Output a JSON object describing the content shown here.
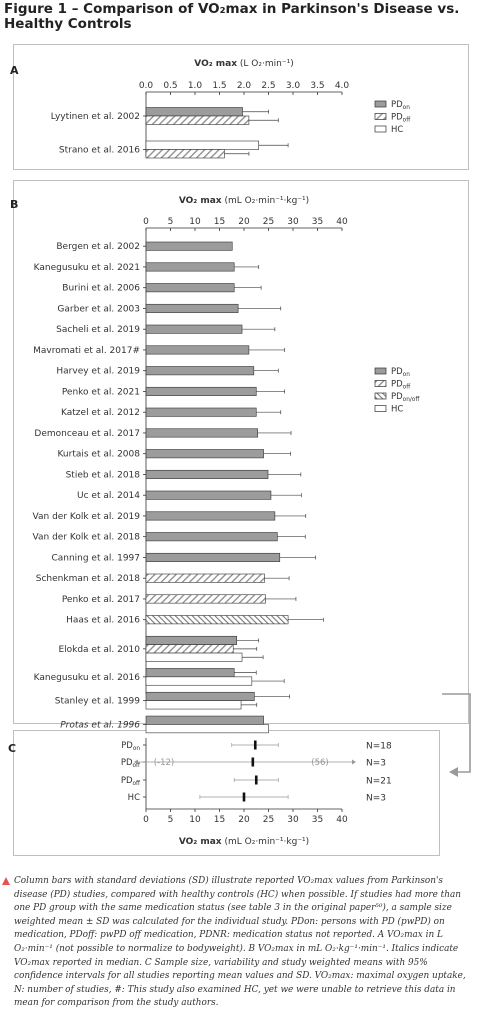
{
  "figure_title": "Figure 1 – Comparison of VO₂max in Parkinson's Disease vs. Healthy Controls",
  "colors": {
    "pd_on": "#9c9c9c",
    "hc": "#ffffff",
    "border": "#bfbfbf",
    "accent": "#e55353",
    "text": "#222222"
  },
  "icons": {
    "caption_marker": "red-triangle-icon",
    "connector": "elbow-arrow-icon"
  },
  "chart_data": [
    {
      "panel": "A",
      "type": "bar",
      "orientation": "horizontal",
      "xlabel": "VO₂ max (L O₂·min⁻¹)",
      "xlim": [
        0,
        4
      ],
      "xticks": [
        "0.0",
        "0.5",
        "1.0",
        "1.5",
        "2.0",
        "2.5",
        "3.0",
        "3.5",
        "4.0"
      ],
      "legend": [
        "PDon",
        "PDoff",
        "HC"
      ],
      "legend_position": "right",
      "groups": [
        {
          "study": "Lyytinen et al. 2002",
          "bars": [
            {
              "kind": "PDon",
              "value": 1.97,
              "sd": 0.53
            },
            {
              "kind": "PDoff",
              "value": 2.1,
              "sd": 0.6
            }
          ]
        },
        {
          "study": "Strano et al. 2016",
          "bars": [
            {
              "kind": "HC",
              "value": 2.3,
              "sd": 0.6
            },
            {
              "kind": "PDoff",
              "value": 1.6,
              "sd": 0.5
            }
          ]
        }
      ]
    },
    {
      "panel": "B",
      "type": "bar",
      "orientation": "horizontal",
      "xlabel": "VO₂ max (mL O₂·min⁻¹·kg⁻¹)",
      "xlim": [
        0,
        40
      ],
      "xticks": [
        "0",
        "5",
        "10",
        "15",
        "20",
        "25",
        "30",
        "35",
        "40"
      ],
      "legend": [
        "PDon",
        "PDoff",
        "PDon/off",
        "HC"
      ],
      "legend_position": "right",
      "groups": [
        {
          "study": "Bergen et al. 2002",
          "bars": [
            {
              "kind": "PDon",
              "value": 17.6
            }
          ]
        },
        {
          "study": "Kanegusuku et al. 2021",
          "bars": [
            {
              "kind": "PDon",
              "value": 18,
              "sd": 5
            }
          ]
        },
        {
          "study": "Burini et al. 2006",
          "bars": [
            {
              "kind": "PDon",
              "value": 18,
              "sd": 5.5
            }
          ]
        },
        {
          "study": "Garber et al. 2003",
          "bars": [
            {
              "kind": "PDon",
              "value": 18.8,
              "sd": 8.7
            }
          ]
        },
        {
          "study": "Sacheli et al. 2019",
          "bars": [
            {
              "kind": "PDon",
              "value": 19.6,
              "sd": 6.7
            }
          ]
        },
        {
          "study": "Mavromati et al. 2017#",
          "bars": [
            {
              "kind": "PDon",
              "value": 21,
              "sd": 7.3
            }
          ]
        },
        {
          "study": "Harvey et al. 2019",
          "bars": [
            {
              "kind": "PDon",
              "value": 22,
              "sd": 5
            }
          ]
        },
        {
          "study": "Penko et al. 2021",
          "bars": [
            {
              "kind": "PDon",
              "value": 22.5,
              "sd": 5.8
            }
          ]
        },
        {
          "study": "Katzel et al. 2012",
          "bars": [
            {
              "kind": "PDon",
              "value": 22.5,
              "sd": 5
            }
          ]
        },
        {
          "study": "Demonceau et al. 2017",
          "bars": [
            {
              "kind": "PDon",
              "value": 22.8,
              "sd": 6.8
            }
          ]
        },
        {
          "study": "Kurtais et al. 2008",
          "bars": [
            {
              "kind": "PDon",
              "value": 24,
              "sd": 5.5
            }
          ]
        },
        {
          "study": "Stieb et al. 2018",
          "bars": [
            {
              "kind": "PDon",
              "value": 24.9,
              "sd": 6.7
            }
          ]
        },
        {
          "study": "Uc et al. 2014",
          "bars": [
            {
              "kind": "PDon",
              "value": 25.5,
              "sd": 6.2
            }
          ]
        },
        {
          "study": "Van der Kolk et al. 2019",
          "bars": [
            {
              "kind": "PDon",
              "value": 26.3,
              "sd": 6.3
            }
          ]
        },
        {
          "study": "Van der Kolk et al. 2018",
          "bars": [
            {
              "kind": "PDon",
              "value": 26.8,
              "sd": 5.7
            }
          ]
        },
        {
          "study": "Canning et al. 1997",
          "bars": [
            {
              "kind": "PDon",
              "value": 27.3,
              "sd": 7.3
            }
          ]
        },
        {
          "study": "Schenkman et al. 2018",
          "bars": [
            {
              "kind": "PDoff",
              "value": 24.2,
              "sd": 5
            }
          ]
        },
        {
          "study": "Penko et al. 2017",
          "bars": [
            {
              "kind": "PDoff",
              "value": 24.4,
              "sd": 6.2
            }
          ]
        },
        {
          "study": "Haas et al. 2016",
          "bars": [
            {
              "kind": "PDon/off",
              "value": 29,
              "sd": 7.2
            }
          ]
        },
        {
          "study": "Elokda et al. 2010",
          "bars": [
            {
              "kind": "PDon",
              "value": 18.5,
              "sd": 4.5
            },
            {
              "kind": "PDoff",
              "value": 17.8,
              "sd": 4.8
            },
            {
              "kind": "HC",
              "value": 19.6,
              "sd": 4.3
            }
          ]
        },
        {
          "study": "Kanegusuku et al. 2016",
          "bars": [
            {
              "kind": "PDon",
              "value": 18,
              "sd": 4.5
            },
            {
              "kind": "HC",
              "value": 21.6,
              "sd": 6.6
            }
          ]
        },
        {
          "study": "Stanley et al. 1999",
          "bars": [
            {
              "kind": "PDon",
              "value": 22.1,
              "sd": 7.2
            },
            {
              "kind": "HC",
              "value": 19.4,
              "sd": 3.2
            }
          ]
        },
        {
          "study": "Protas et al. 1996",
          "italic": true,
          "bars": [
            {
              "kind": "PDon",
              "value": 24
            },
            {
              "kind": "HC",
              "value": 25
            }
          ]
        }
      ]
    },
    {
      "panel": "C",
      "type": "scatter",
      "xlabel": "VO₂ max (mL O₂·min⁻¹·kg⁻¹)",
      "xlim": [
        0,
        40
      ],
      "xticks": [
        "0",
        "5",
        "10",
        "15",
        "20",
        "25",
        "30",
        "35",
        "40"
      ],
      "rows": [
        {
          "group": "PDon",
          "mean": 22.3,
          "ci": [
            17.5,
            27
          ],
          "n": "N=18"
        },
        {
          "group": "PDoff",
          "mean": 21.8,
          "ci": [
            -12,
            56
          ],
          "n": "N=3",
          "left_label": "(-12)",
          "right_label": "(56)"
        },
        {
          "group": "PDoff",
          "mean": 22.5,
          "ci": [
            18,
            27
          ],
          "n": "N=21"
        },
        {
          "group": "HC",
          "mean": 20,
          "ci": [
            11,
            29
          ],
          "n": "N=3"
        }
      ]
    }
  ],
  "caption": "Column bars with standard deviations (SD) illustrate reported VO₂max values from Parkinson's disease (PD) studies, compared with healthy controls (HC) when possible. If studies had more than one PD group with the same medication status (see table 3 in the original paper⁵⁰), a sample size weighted mean ± SD was calculated for the individual study. PDon: persons with PD (pwPD) on medication, PDoff: pwPD off medication, PDNR: medication status not reported. A VO₂max in L O₂·min⁻¹ (not possible to normalize to bodyweight). B VO₂max in mL O₂·kg⁻¹·min⁻¹. Italics indicate VO₂max reported in median. C Sample size, variability and study weighted means with 95% confidence intervals for all studies reporting mean values and SD. VO₂max: maximal oxygen uptake, N: number of studies, #: This study also examined HC, yet we were unable to retrieve this data in mean for comparison from the study authors."
}
